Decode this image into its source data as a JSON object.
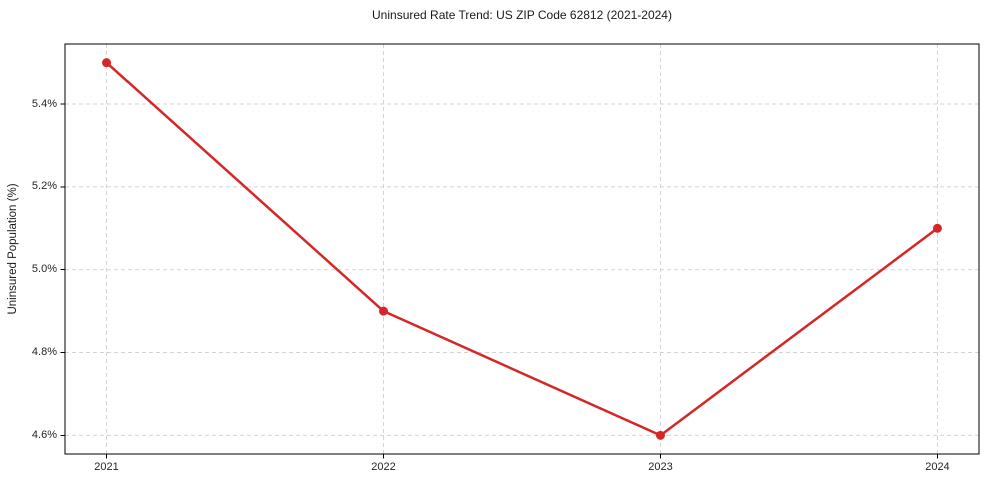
{
  "chart_data": {
    "type": "line",
    "title": "Uninsured Rate Trend: US ZIP Code 62812 (2021-2024)",
    "xlabel": "",
    "ylabel": "Uninsured Population (%)",
    "x": [
      2021,
      2022,
      2023,
      2024
    ],
    "values": [
      5.5,
      4.9,
      4.6,
      5.1
    ],
    "xlim": [
      2020.85,
      2024.15
    ],
    "ylim": [
      4.555,
      5.545
    ],
    "xticks": {
      "values": [
        2021,
        2022,
        2023,
        2024
      ],
      "labels": [
        "2021",
        "2022",
        "2023",
        "2024"
      ]
    },
    "yticks": {
      "values": [
        4.6,
        4.8,
        5.0,
        5.2,
        5.4
      ],
      "labels": [
        "4.6%",
        "4.8%",
        "5.0%",
        "5.2%",
        "5.4%"
      ]
    },
    "grid": true,
    "grid_style": "dashed",
    "legend": false,
    "line_color": "#d62728",
    "marker": "circle",
    "marker_radius": 4.5,
    "line_width": 2.5,
    "grid_color": "#cccccc",
    "spine_color": "#000000",
    "text_color": "#262626"
  }
}
